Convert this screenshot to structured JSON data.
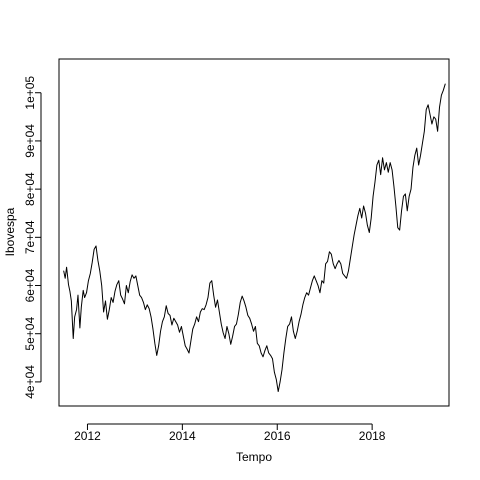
{
  "chart_data": {
    "type": "line",
    "title": "",
    "xlabel": "Tempo",
    "ylabel": "Ibovespa",
    "xlim": [
      2011.4,
      2019.62
    ],
    "ylim": [
      35000,
      107000
    ],
    "x_ticks": [
      2012,
      2014,
      2016,
      2018
    ],
    "x_tick_labels": [
      "2012",
      "2014",
      "2016",
      "2018"
    ],
    "y_ticks": [
      40000,
      50000,
      60000,
      70000,
      80000,
      90000,
      100000
    ],
    "y_tick_labels": [
      "4e+04",
      "5e+04",
      "6e+04",
      "7e+04",
      "8e+04",
      "9e+04",
      "1e+05"
    ],
    "grid": false,
    "legend": "none",
    "series": [
      {
        "color": "#000000",
        "x": [
          2011.5,
          2011.53,
          2011.56,
          2011.6,
          2011.63,
          2011.66,
          2011.7,
          2011.73,
          2011.77,
          2011.8,
          2011.84,
          2011.87,
          2011.91,
          2011.94,
          2011.98,
          2012.02,
          2012.06,
          2012.1,
          2012.14,
          2012.18,
          2012.22,
          2012.26,
          2012.3,
          2012.34,
          2012.38,
          2012.42,
          2012.46,
          2012.5,
          2012.54,
          2012.58,
          2012.62,
          2012.66,
          2012.7,
          2012.74,
          2012.78,
          2012.82,
          2012.86,
          2012.9,
          2012.94,
          2012.98,
          2013.02,
          2013.06,
          2013.1,
          2013.14,
          2013.18,
          2013.22,
          2013.26,
          2013.3,
          2013.34,
          2013.38,
          2013.42,
          2013.46,
          2013.5,
          2013.54,
          2013.58,
          2013.62,
          2013.66,
          2013.7,
          2013.74,
          2013.78,
          2013.82,
          2013.86,
          2013.9,
          2013.94,
          2013.98,
          2014.02,
          2014.06,
          2014.1,
          2014.14,
          2014.18,
          2014.22,
          2014.26,
          2014.3,
          2014.34,
          2014.38,
          2014.42,
          2014.46,
          2014.5,
          2014.54,
          2014.58,
          2014.62,
          2014.66,
          2014.7,
          2014.74,
          2014.78,
          2014.82,
          2014.86,
          2014.9,
          2014.94,
          2014.98,
          2015.02,
          2015.06,
          2015.1,
          2015.14,
          2015.18,
          2015.22,
          2015.26,
          2015.3,
          2015.34,
          2015.38,
          2015.42,
          2015.46,
          2015.5,
          2015.54,
          2015.58,
          2015.62,
          2015.66,
          2015.7,
          2015.74,
          2015.78,
          2015.82,
          2015.86,
          2015.9,
          2015.94,
          2015.98,
          2016.02,
          2016.06,
          2016.1,
          2016.14,
          2016.18,
          2016.22,
          2016.26,
          2016.3,
          2016.34,
          2016.38,
          2016.42,
          2016.46,
          2016.5,
          2016.54,
          2016.58,
          2016.62,
          2016.66,
          2016.7,
          2016.74,
          2016.78,
          2016.82,
          2016.86,
          2016.9,
          2016.94,
          2016.98,
          2017.02,
          2017.06,
          2017.1,
          2017.14,
          2017.18,
          2017.22,
          2017.26,
          2017.3,
          2017.34,
          2017.38,
          2017.42,
          2017.46,
          2017.5,
          2017.54,
          2017.58,
          2017.62,
          2017.66,
          2017.7,
          2017.74,
          2017.78,
          2017.82,
          2017.86,
          2017.9,
          2017.94,
          2017.98,
          2018.02,
          2018.06,
          2018.1,
          2018.14,
          2018.18,
          2018.22,
          2018.26,
          2018.3,
          2018.34,
          2018.38,
          2018.42,
          2018.46,
          2018.5,
          2018.54,
          2018.58,
          2018.62,
          2018.66,
          2018.7,
          2018.74,
          2018.78,
          2018.82,
          2018.86,
          2018.9,
          2018.94,
          2018.98,
          2019.02,
          2019.06,
          2019.1,
          2019.14,
          2019.18,
          2019.22,
          2019.26,
          2019.3,
          2019.34,
          2019.38,
          2019.42,
          2019.46,
          2019.5,
          2019.54
        ],
        "values": [
          63000,
          61500,
          63800,
          60200,
          58800,
          56800,
          49000,
          53500,
          55000,
          58000,
          51200,
          55500,
          59000,
          57500,
          58500,
          61000,
          62500,
          64800,
          67500,
          68200,
          65200,
          63000,
          60000,
          54500,
          56800,
          53000,
          55000,
          57500,
          56500,
          58800,
          60200,
          61000,
          58000,
          57200,
          56200,
          60000,
          58500,
          60800,
          62200,
          61500,
          62000,
          60000,
          58000,
          57500,
          56500,
          55000,
          56000,
          55200,
          53500,
          51000,
          48000,
          45500,
          47500,
          50500,
          52500,
          53500,
          55800,
          54200,
          53800,
          51800,
          53200,
          52500,
          51800,
          50300,
          51500,
          49500,
          47500,
          46800,
          46000,
          48500,
          51000,
          52000,
          53500,
          52500,
          54500,
          55200,
          55000,
          56000,
          57500,
          60500,
          61000,
          58000,
          55500,
          57000,
          54500,
          52000,
          50200,
          49000,
          51500,
          50000,
          47800,
          49500,
          51500,
          52000,
          54000,
          56500,
          57800,
          56800,
          55500,
          53800,
          53200,
          52000,
          50500,
          51500,
          48000,
          47500,
          46000,
          45200,
          46500,
          47500,
          46000,
          45500,
          44800,
          42000,
          40500,
          38000,
          40000,
          42500,
          46000,
          49000,
          51500,
          52000,
          53500,
          50500,
          49000,
          50500,
          52500,
          54000,
          56000,
          57500,
          58500,
          58000,
          59500,
          61000,
          62000,
          61000,
          60000,
          58500,
          61000,
          60500,
          64500,
          65000,
          67000,
          66500,
          64500,
          63500,
          64500,
          65200,
          64500,
          62500,
          62000,
          61500,
          63000,
          65500,
          68000,
          70500,
          72500,
          74500,
          76000,
          74000,
          76500,
          75000,
          72500,
          71000,
          74000,
          78500,
          81500,
          85000,
          86000,
          83000,
          86500,
          84000,
          85500,
          83500,
          85500,
          84000,
          80500,
          76500,
          72000,
          71500,
          75500,
          78500,
          79000,
          75500,
          78500,
          80000,
          84500,
          87000,
          88500,
          85000,
          87000,
          89500,
          92000,
          96500,
          97500,
          95500,
          93500,
          95000,
          94500,
          92000,
          97000,
          99500,
          100500,
          101800
        ]
      }
    ]
  }
}
